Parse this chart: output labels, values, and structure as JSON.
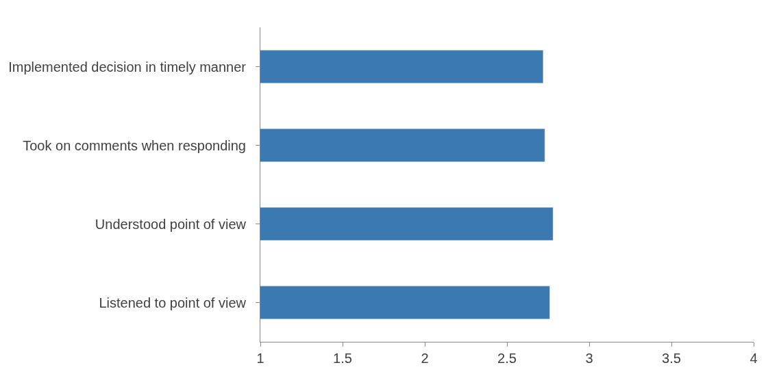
{
  "chart_data": {
    "type": "bar",
    "orientation": "horizontal",
    "categories": [
      "Implemented decision in timely manner",
      "Took on comments when responding",
      "Understood point of view",
      "Listened to point of view"
    ],
    "values": [
      2.72,
      2.73,
      2.78,
      2.76
    ],
    "color": "#3a7ab0",
    "xlim": [
      1,
      4
    ],
    "xticks": [
      1,
      1.5,
      2,
      2.5,
      3,
      3.5,
      4
    ],
    "legend": false
  }
}
